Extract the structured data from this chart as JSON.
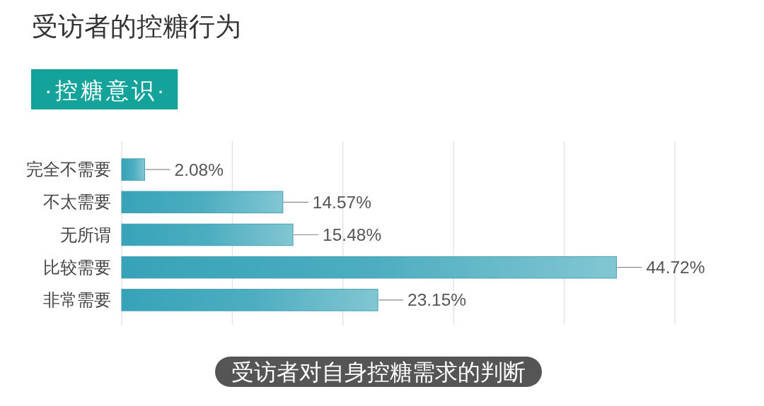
{
  "chart_data": {
    "type": "bar",
    "orientation": "horizontal",
    "title": "受访者的控糖行为",
    "subtitle": "·控糖意识·",
    "categories": [
      "完全不需要",
      "不太需要",
      "无所谓",
      "比较需要",
      "非常需要"
    ],
    "values": [
      2.08,
      14.57,
      15.48,
      44.72,
      23.15
    ],
    "color": "#4cadc0",
    "value_labels": [
      "2.08%",
      "14.57%",
      "15.48%",
      "44.72%",
      "23.15%"
    ],
    "xlim": [
      0,
      50
    ],
    "xticks": [
      {
        "value": 0,
        "label": null
      },
      {
        "value": 10,
        "label": null
      },
      {
        "value": 20,
        "label": null
      },
      {
        "value": 30,
        "label": null
      },
      {
        "value": 40,
        "label": null
      },
      {
        "value": 50,
        "label": null
      }
    ],
    "grid": "x",
    "tick_labels": "y",
    "annotations": [
      "受访者对自身控糖需求的判断"
    ]
  }
}
